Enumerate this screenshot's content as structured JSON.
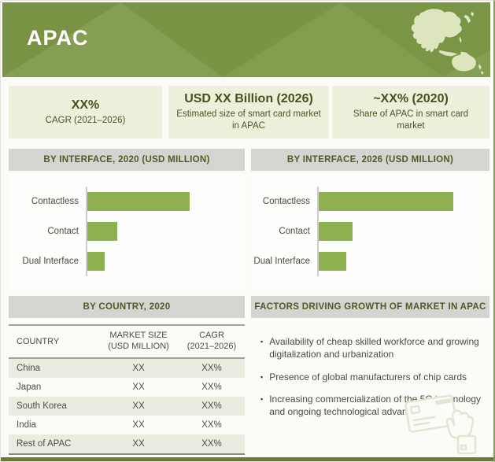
{
  "header": {
    "title": "APAC",
    "map_icon": "asia-pacific-map"
  },
  "stats": [
    {
      "headline": "XX%",
      "caption": "CAGR (2021–2026)"
    },
    {
      "headline": "USD XX Billion (2026)",
      "caption": "Estimated size of smart card market in APAC"
    },
    {
      "headline": "~XX% (2020)",
      "caption": "Share of APAC in smart card market"
    }
  ],
  "chart_data": [
    {
      "type": "bar",
      "orientation": "horizontal",
      "title": "BY INTERFACE, 2020 (USD MILLION)",
      "categories": [
        "Contactless",
        "Contact",
        "Dual Interface"
      ],
      "relative_values": [
        76,
        22,
        13
      ],
      "bar_pct_of_plot": [
        65,
        19,
        11
      ],
      "value_labels_shown": false,
      "bar_color": "#8fb04e",
      "axis_labels_shown": false,
      "grid": false,
      "legend": false
    },
    {
      "type": "bar",
      "orientation": "horizontal",
      "title": "BY INTERFACE, 2026 (USD MILLION)",
      "categories": [
        "Contactless",
        "Contact",
        "Dual Interface"
      ],
      "relative_values": [
        100,
        25,
        21
      ],
      "bar_pct_of_plot": [
        79,
        20,
        16
      ],
      "value_labels_shown": false,
      "bar_color": "#8fb04e",
      "axis_labels_shown": false,
      "grid": false,
      "legend": false
    }
  ],
  "country_table": {
    "title": "BY COUNTRY, 2020",
    "columns": [
      {
        "l1": "COUNTRY",
        "l2": ""
      },
      {
        "l1": "MARKET SIZE",
        "l2": "(USD MILLION)"
      },
      {
        "l1": "CAGR",
        "l2": "(2021–2026)"
      }
    ],
    "rows": [
      {
        "country": "China",
        "market_size": "XX",
        "cagr": "XX%"
      },
      {
        "country": "Japan",
        "market_size": "XX",
        "cagr": "XX%"
      },
      {
        "country": "South Korea",
        "market_size": "XX",
        "cagr": "XX%"
      },
      {
        "country": "India",
        "market_size": "XX",
        "cagr": "XX%"
      },
      {
        "country": "Rest of APAC",
        "market_size": "XX",
        "cagr": "XX%"
      }
    ]
  },
  "factors": {
    "title": "FACTORS DRIVING GROWTH OF MARKET IN APAC",
    "bullet_glyph": "▪",
    "items": [
      "Availability of cheap skilled workforce and growing digitalization and urbanization",
      "Presence of global manufacturers of chip cards",
      "Increasing commercialization of the 5G technology and ongoing technological advancements"
    ]
  },
  "colors": {
    "banner_green": "#7e9a48",
    "map_pale_green": "#dce5bc",
    "bar_green": "#8fb04e",
    "section_header_gray": "#d4d4d1",
    "stat_box_bg": "#eef0dc",
    "dark_olive_text": "#4a5423",
    "table_alt_row": "#e9ece0",
    "bottom_bar": "#6b7b37"
  }
}
